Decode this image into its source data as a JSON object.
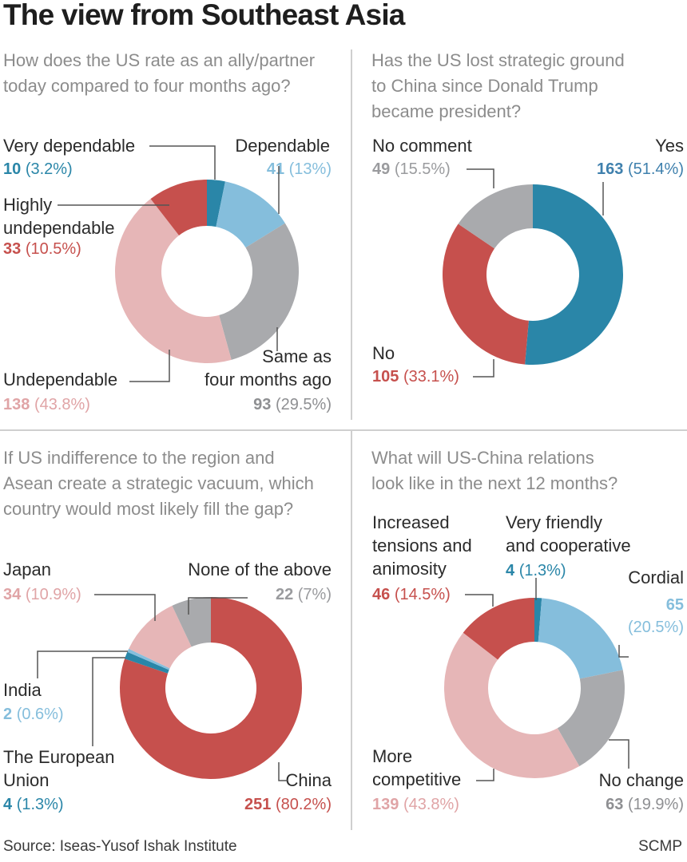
{
  "title": "The view from Southeast Asia",
  "source": "Source: Iseas-Yusof Ishak Institute",
  "credit": "SCMP",
  "colors": {
    "dark_blue": "#2a86a8",
    "light_blue": "#85bedc",
    "grey": "#a9aaad",
    "red": "#c6504d",
    "pink": "#e6b6b7"
  },
  "chart_data": [
    {
      "type": "pie",
      "variant": "donut",
      "title": "How does the US rate as an ally/partner today compared to four months ago?",
      "slices": [
        {
          "label": "Very dependable",
          "count": 10,
          "pct": "3.2%",
          "value": 3.2,
          "color": "#2a86a8"
        },
        {
          "label": "Dependable",
          "count": 41,
          "pct": "13%",
          "value": 13,
          "color": "#85bedc"
        },
        {
          "label": "Same as four months ago",
          "count": 93,
          "pct": "29.5%",
          "value": 29.5,
          "color": "#a9aaad"
        },
        {
          "label": "Undependable",
          "count": 138,
          "pct": "43.8%",
          "value": 43.8,
          "color": "#e6b6b7"
        },
        {
          "label": "Highly undependable",
          "count": 33,
          "pct": "10.5%",
          "value": 10.5,
          "color": "#c6504d"
        }
      ]
    },
    {
      "type": "pie",
      "variant": "donut",
      "title": "Has the US lost strategic ground to China since Donald Trump became president?",
      "slices": [
        {
          "label": "Yes",
          "count": 163,
          "pct": "51.4%",
          "value": 51.4,
          "color": "#2a86a8"
        },
        {
          "label": "No",
          "count": 105,
          "pct": "33.1%",
          "value": 33.1,
          "color": "#c6504d"
        },
        {
          "label": "No comment",
          "count": 49,
          "pct": "15.5%",
          "value": 15.5,
          "color": "#a9aaad"
        }
      ]
    },
    {
      "type": "pie",
      "variant": "donut",
      "title": "If US indifference to the region and Asean create a strategic vacuum, which country would most likely fill the gap?",
      "slices": [
        {
          "label": "China",
          "count": 251,
          "pct": "80.2%",
          "value": 80.2,
          "color": "#c6504d"
        },
        {
          "label": "The European Union",
          "count": 4,
          "pct": "1.3%",
          "value": 1.3,
          "color": "#2a86a8"
        },
        {
          "label": "India",
          "count": 2,
          "pct": "0.6%",
          "value": 0.6,
          "color": "#85bedc"
        },
        {
          "label": "Japan",
          "count": 34,
          "pct": "10.9%",
          "value": 10.9,
          "color": "#e6b6b7"
        },
        {
          "label": "None of the above",
          "count": 22,
          "pct": "7%",
          "value": 7,
          "color": "#a9aaad"
        }
      ]
    },
    {
      "type": "pie",
      "variant": "donut",
      "title": "What will US-China relations look like in the next 12 months?",
      "slices": [
        {
          "label": "Very friendly and cooperative",
          "count": 4,
          "pct": "1.3%",
          "value": 1.3,
          "color": "#2a86a8"
        },
        {
          "label": "Cordial",
          "count": 65,
          "pct": "20.5%",
          "value": 20.5,
          "color": "#85bedc"
        },
        {
          "label": "No change",
          "count": 63,
          "pct": "19.9%",
          "value": 19.9,
          "color": "#a9aaad"
        },
        {
          "label": "More competitive",
          "count": 139,
          "pct": "43.8%",
          "value": 43.8,
          "color": "#e6b6b7"
        },
        {
          "label": "Increased tensions and animosity",
          "count": 46,
          "pct": "14.5%",
          "value": 14.5,
          "color": "#c6504d"
        }
      ]
    }
  ],
  "panels": [
    {
      "question": [
        "How does the US rate as an ally/partner",
        "today compared to four months ago?"
      ],
      "labels": {
        "very_dependable": [
          "Very dependable"
        ],
        "dependable": [
          "Dependable"
        ],
        "highly_undependable": [
          "Highly",
          "undependable"
        ],
        "undependable": [
          "Undependable"
        ],
        "same": [
          "Same as",
          "four months ago"
        ]
      },
      "counts": {
        "very_dependable": "10",
        "dependable": "41",
        "highly_undependable": "33",
        "undependable": "138",
        "same": "93"
      },
      "pcts": {
        "very_dependable": "(3.2%)",
        "dependable": "(13%)",
        "highly_undependable": "(10.5%)",
        "undependable": "(43.8%)",
        "same": "(29.5%)"
      }
    },
    {
      "question": [
        "Has the US lost strategic ground",
        "to China since Donald Trump",
        "became president?"
      ],
      "labels": {
        "no_comment": "No comment",
        "yes": "Yes",
        "no": "No"
      },
      "counts": {
        "no_comment": "49",
        "yes": "163",
        "no": "105"
      },
      "pcts": {
        "no_comment": "(15.5%)",
        "yes": "(51.4%)",
        "no": "(33.1%)"
      }
    },
    {
      "question": [
        "If US indifference to the region and",
        "Asean create a strategic vacuum, which",
        "country would most likely fill the gap?"
      ],
      "labels": {
        "japan": "Japan",
        "none": "None of the above",
        "india": "India",
        "eu": [
          "The European",
          "Union"
        ],
        "china": "China"
      },
      "counts": {
        "japan": "34",
        "none": "22",
        "india": "2",
        "eu": "4",
        "china": "251"
      },
      "pcts": {
        "japan": "(10.9%)",
        "none": "(7%)",
        "india": "(0.6%)",
        "eu": "(1.3%)",
        "china": "(80.2%)"
      }
    },
    {
      "question": [
        "What will US-China relations",
        "look like in the next 12 months?"
      ],
      "labels": {
        "tensions": [
          "Increased",
          "tensions and",
          "animosity"
        ],
        "friendly": [
          "Very friendly",
          "and cooperative"
        ],
        "cordial": "Cordial",
        "competitive": [
          "More",
          "competitive"
        ],
        "nochange": "No change"
      },
      "counts": {
        "tensions": "46",
        "friendly": "4",
        "cordial": "65",
        "competitive": "139",
        "nochange": "63"
      },
      "pcts": {
        "tensions": "(14.5%)",
        "friendly": "(1.3%)",
        "cordial": "(20.5%)",
        "competitive": "(43.8%)",
        "nochange": "(19.9%)"
      }
    }
  ]
}
